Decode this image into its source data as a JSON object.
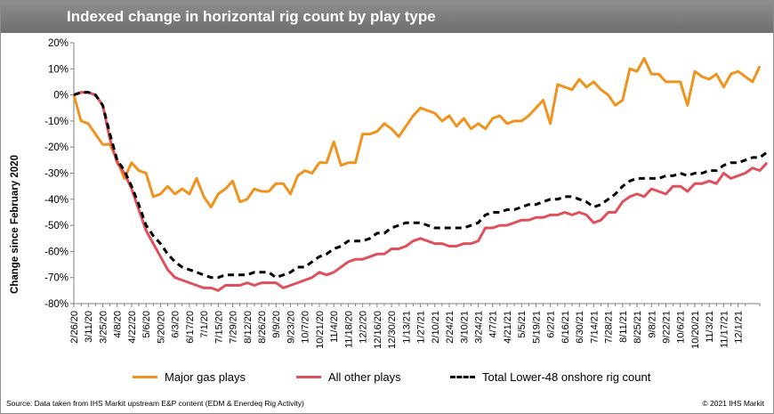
{
  "chart_data": {
    "type": "line",
    "title": "Indexed change in horizontal rig count by play type",
    "ylabel": "Change since February 2020",
    "xlabel": "",
    "ylim": [
      -80,
      20
    ],
    "y_ticks": [
      "20%",
      "10%",
      "0%",
      "-10%",
      "-20%",
      "-30%",
      "-40%",
      "-50%",
      "-60%",
      "-70%",
      "-80%"
    ],
    "x_tick_labels": [
      "2/26/20",
      "3/11/20",
      "3/25/20",
      "4/8/20",
      "4/22/20",
      "5/6/20",
      "5/20/20",
      "6/3/20",
      "6/17/20",
      "7/1/20",
      "7/15/20",
      "7/29/20",
      "8/12/20",
      "8/26/20",
      "9/9/20",
      "9/23/20",
      "10/7/20",
      "10/21/20",
      "11/4/20",
      "11/18/20",
      "12/2/20",
      "12/16/20",
      "12/30/20",
      "1/13/21",
      "1/27/21",
      "2/10/21",
      "2/24/21",
      "3/10/21",
      "3/24/21",
      "4/7/21",
      "4/21/21",
      "5/5/21",
      "5/19/21",
      "6/2/21",
      "6/16/21",
      "6/30/21",
      "7/14/21",
      "7/28/21",
      "8/11/21",
      "8/25/21",
      "9/8/21",
      "9/22/21",
      "10/6/21",
      "10/20/21",
      "11/3/21",
      "11/17/21",
      "12/1/21"
    ],
    "x_start": "2/26/20",
    "x_interval_weeks": 1,
    "grid": false,
    "legend_position": "bottom",
    "series": [
      {
        "name": "Major gas plays",
        "color": "#f0921e",
        "style": "solid",
        "values": [
          0,
          -10,
          -11,
          -15,
          -19,
          -19,
          -25,
          -32,
          -26,
          -29,
          -30,
          -39,
          -38,
          -35,
          -38,
          -36,
          -38,
          -32,
          -39,
          -43,
          -38,
          -36,
          -33,
          -41,
          -40,
          -36,
          -37,
          -37,
          -34,
          -34,
          -38,
          -31,
          -29,
          -30,
          -26,
          -26,
          -18,
          -27,
          -26,
          -26,
          -15,
          -15,
          -14,
          -11,
          -13,
          -16,
          -12,
          -8,
          -5,
          -6,
          -7,
          -10,
          -8,
          -12,
          -9,
          -13,
          -11,
          -13,
          -9,
          -8,
          -11,
          -10,
          -10,
          -8,
          -5,
          -2,
          -11,
          4,
          3,
          2,
          6,
          3,
          5,
          2,
          0,
          -4,
          -2,
          10,
          9,
          14,
          8,
          8,
          5,
          5,
          5,
          -4,
          9,
          7,
          6,
          8,
          3,
          8,
          9,
          7,
          5,
          11
        ]
      },
      {
        "name": "All other plays",
        "color": "#e0505a",
        "style": "solid",
        "values": [
          0,
          1,
          1,
          0,
          -4,
          -17,
          -26,
          -30,
          -36,
          -44,
          -52,
          -57,
          -62,
          -67,
          -70,
          -71,
          -72,
          -73,
          -74,
          -74,
          -75,
          -73,
          -73,
          -73,
          -72,
          -73,
          -72,
          -72,
          -72,
          -74,
          -73,
          -72,
          -71,
          -70,
          -68,
          -69,
          -68,
          -66,
          -64,
          -63,
          -63,
          -62,
          -61,
          -61,
          -59,
          -59,
          -58,
          -56,
          -55,
          -56,
          -57,
          -57,
          -58,
          -58,
          -57,
          -57,
          -56,
          -51,
          -51,
          -50,
          -50,
          -49,
          -48,
          -48,
          -47,
          -47,
          -46,
          -46,
          -45,
          -46,
          -45,
          -46,
          -49,
          -48,
          -45,
          -45,
          -41,
          -39,
          -38,
          -39,
          -36,
          -37,
          -38,
          -35,
          -35,
          -37,
          -34,
          -34,
          -33,
          -34,
          -30,
          -32,
          -31,
          -30,
          -28,
          -29,
          -26
        ]
      },
      {
        "name": "Total Lower-48 onshore rig count",
        "color": "#000000",
        "style": "dashed",
        "values": [
          0,
          1,
          1,
          0,
          -4,
          -15,
          -25,
          -29,
          -35,
          -42,
          -50,
          -54,
          -57,
          -61,
          -64,
          -66,
          -67,
          -68,
          -69,
          -70,
          -70,
          -69,
          -69,
          -69,
          -69,
          -68,
          -68,
          -68,
          -70,
          -69,
          -68,
          -66,
          -66,
          -64,
          -62,
          -61,
          -59,
          -58,
          -56,
          -56,
          -56,
          -55,
          -53,
          -53,
          -51,
          -50,
          -49,
          -49,
          -49,
          -50,
          -51,
          -51,
          -51,
          -51,
          -51,
          -50,
          -49,
          -46,
          -45,
          -45,
          -44,
          -44,
          -43,
          -42,
          -42,
          -41,
          -40,
          -40,
          -39,
          -39,
          -40,
          -41,
          -43,
          -42,
          -40,
          -38,
          -35,
          -33,
          -32,
          -32,
          -32,
          -32,
          -31,
          -31,
          -30,
          -31,
          -30,
          -30,
          -29,
          -29,
          -27,
          -26,
          -26,
          -25,
          -24,
          -24,
          -22
        ]
      }
    ]
  },
  "footer": {
    "source": "Source: Data taken from IHS Markit upstream E&P content (EDM & Enerdeq Rig Activity)",
    "copyright": "© 2021 IHS Markit"
  }
}
